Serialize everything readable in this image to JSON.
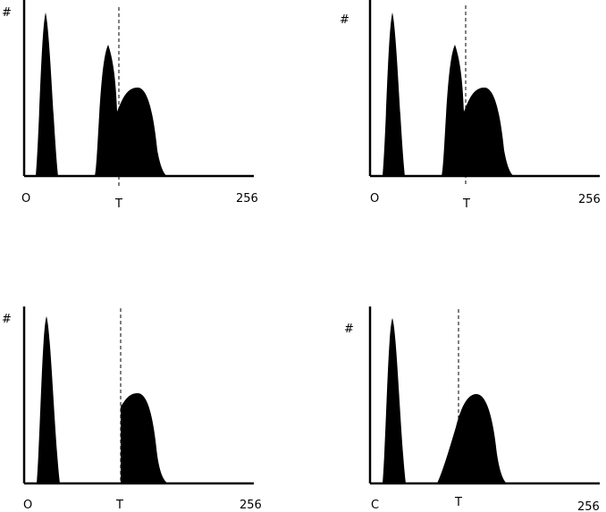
{
  "colors": {
    "fill": "#000000",
    "background": "#ffffff"
  },
  "panels": [
    {
      "id": "top-left",
      "y_label": "#",
      "origin_label": "O",
      "threshold_label": "T",
      "max_label": "256",
      "x_max": 256,
      "threshold": 100,
      "shape": "trimodal"
    },
    {
      "id": "top-right",
      "y_label": "#",
      "origin_label": "O",
      "threshold_label": "T",
      "max_label": "256",
      "x_max": 256,
      "threshold": 100,
      "shape": "trimodal"
    },
    {
      "id": "bottom-left",
      "y_label": "#",
      "origin_label": "O",
      "threshold_label": "T",
      "max_label": "256",
      "x_max": 256,
      "threshold": 100,
      "shape": "bimodal-cut"
    },
    {
      "id": "bottom-right",
      "y_label": "#",
      "origin_label": "C",
      "threshold_label": "T",
      "max_label": "256",
      "x_max": 256,
      "threshold": 100,
      "shape": "bimodal"
    }
  ]
}
